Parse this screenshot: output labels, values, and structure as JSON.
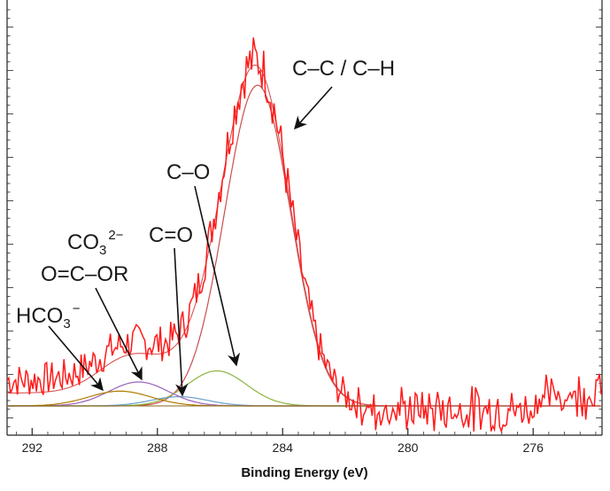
{
  "chart_data": {
    "type": "line",
    "title": "",
    "xlabel": "Binding Energy (eV)",
    "ylabel": "",
    "xlim": [
      292.8,
      273.8
    ],
    "ylim": [
      -0.05,
      1.1
    ],
    "x_ticks": [
      292,
      288,
      284,
      280,
      276
    ],
    "x_tick_labels": [
      "292",
      "288",
      "284",
      "280",
      "276"
    ],
    "series": [
      {
        "name": "measured",
        "color": "#ff1a1a"
      },
      {
        "name": "envelope",
        "color": "#d95454"
      },
      {
        "name": "C-C / C-H",
        "center": 284.8,
        "amplitude": 0.87,
        "sigma": 1.05,
        "color": "#cc4d4d"
      },
      {
        "name": "C-O",
        "center": 286.1,
        "amplitude": 0.095,
        "sigma": 0.95,
        "color": "#8cb33c"
      },
      {
        "name": "C=O",
        "center": 287.3,
        "amplitude": 0.025,
        "sigma": 0.9,
        "color": "#6aa0c8"
      },
      {
        "name": "O=C-OR",
        "center": 288.6,
        "amplitude": 0.065,
        "sigma": 0.95,
        "color": "#9a62b8"
      },
      {
        "name": "HCO3-",
        "center": 289.2,
        "amplitude": 0.04,
        "sigma": 1.0,
        "color": "#b07a00"
      }
    ],
    "measured_model": {
      "background": [
        0.07,
        0.085
      ],
      "background_edges_eV": [
        292.8,
        289.5,
        281.5,
        273.8
      ],
      "noise_amplitude": 0.045,
      "extra_noise_low_BE": 0.03
    },
    "annotations": [
      {
        "text": "C–C / C–H",
        "target_x": 283.95,
        "target_y": 0.76
      },
      {
        "text": "C–O",
        "target_x": 285.75,
        "target_y": 0.11
      },
      {
        "text": "C=O",
        "target_x": 287.35,
        "target_y": 0.035
      },
      {
        "text_parts": [
          "CO",
          "3",
          "2−"
        ],
        "target_x": 288.5,
        "target_y": 0.085
      },
      {
        "text": "O=C–OR"
      },
      {
        "text_parts": [
          "HCO",
          "3",
          "−"
        ],
        "target_x": 290.2,
        "target_y": 0.048
      }
    ]
  },
  "labels": {
    "cc": "C–C / C–H",
    "co": "C–O",
    "c_double_o": "C=O",
    "co3_main": "CO",
    "co3_sub": "3",
    "co3_sup": "2−",
    "ester": "O=C–OR",
    "hco3_main": "HCO",
    "hco3_sub": "3",
    "hco3_sup": "−"
  },
  "colors": {
    "measured": "#ff1a1a",
    "axis": "#222222",
    "baseline": "#8a6a1a"
  }
}
